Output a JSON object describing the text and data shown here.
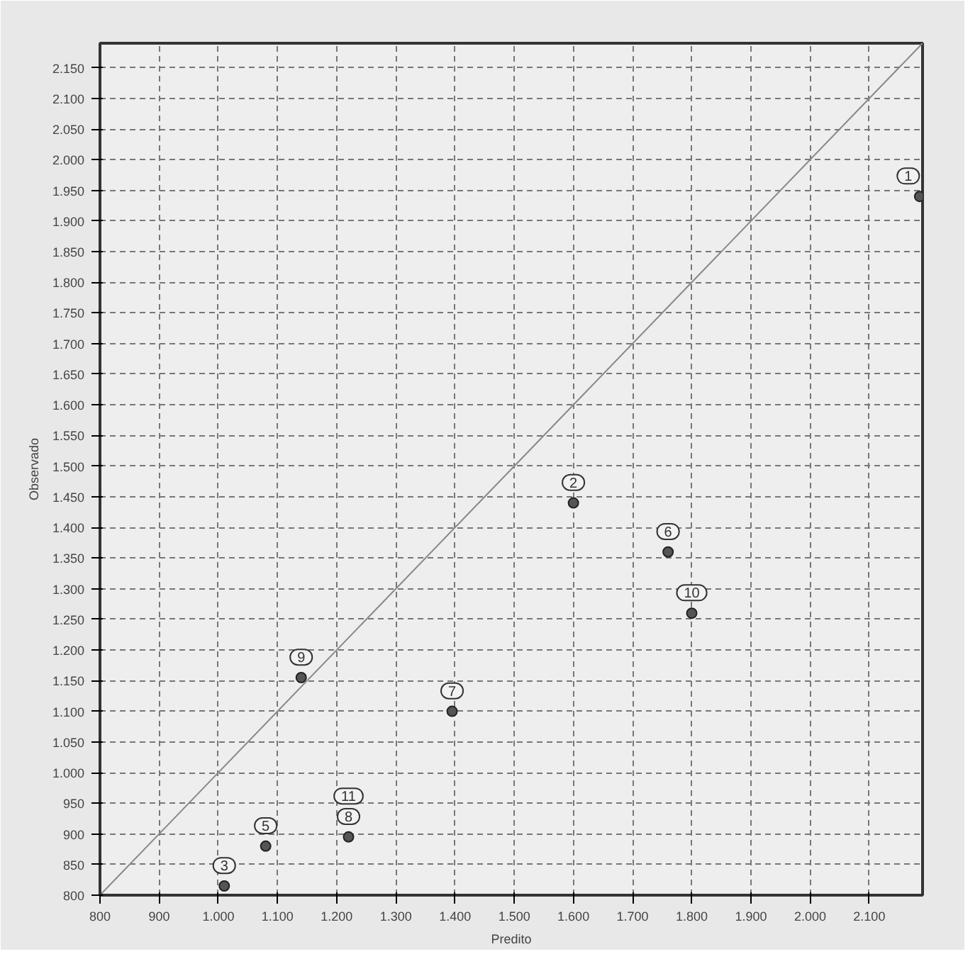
{
  "chart_data": {
    "type": "scatter",
    "xlabel": "Predito",
    "ylabel": "Observado",
    "xlim": [
      800,
      2190
    ],
    "ylim": [
      800,
      2190
    ],
    "xticks": [
      800,
      900,
      {
        "value": 1000,
        "label": "1.000"
      },
      {
        "value": 1100,
        "label": "1.100"
      },
      {
        "value": 1200,
        "label": "1.200"
      },
      {
        "value": 1300,
        "label": "1.300"
      },
      {
        "value": 1400,
        "label": "1.400"
      },
      {
        "value": 1500,
        "label": "1.500"
      },
      {
        "value": 1600,
        "label": "1.600"
      },
      {
        "value": 1700,
        "label": "1.700"
      },
      {
        "value": 1800,
        "label": "1.800"
      },
      {
        "value": 1900,
        "label": "1.900"
      },
      {
        "value": 2000,
        "label": "2.000"
      },
      {
        "value": 2100,
        "label": "2.100"
      }
    ],
    "yticks": [
      800,
      850,
      900,
      950,
      {
        "value": 1000,
        "label": "1.000"
      },
      {
        "value": 1050,
        "label": "1.050"
      },
      {
        "value": 1100,
        "label": "1.100"
      },
      {
        "value": 1150,
        "label": "1.150"
      },
      {
        "value": 1200,
        "label": "1.200"
      },
      {
        "value": 1250,
        "label": "1.250"
      },
      {
        "value": 1300,
        "label": "1.300"
      },
      {
        "value": 1350,
        "label": "1.350"
      },
      {
        "value": 1400,
        "label": "1.400"
      },
      {
        "value": 1450,
        "label": "1.450"
      },
      {
        "value": 1500,
        "label": "1.500"
      },
      {
        "value": 1550,
        "label": "1.550"
      },
      {
        "value": 1600,
        "label": "1.600"
      },
      {
        "value": 1650,
        "label": "1.650"
      },
      {
        "value": 1700,
        "label": "1.700"
      },
      {
        "value": 1750,
        "label": "1.750"
      },
      {
        "value": 1800,
        "label": "1.800"
      },
      {
        "value": 1850,
        "label": "1.850"
      },
      {
        "value": 1900,
        "label": "1.900"
      },
      {
        "value": 1950,
        "label": "1.950"
      },
      {
        "value": 2000,
        "label": "2.000"
      },
      {
        "value": 2050,
        "label": "2.050"
      },
      {
        "value": 2100,
        "label": "2.100"
      },
      {
        "value": 2150,
        "label": "2.150"
      }
    ],
    "grid": true,
    "annotations": [
      {
        "text": "1",
        "x": 2185,
        "y": 1940
      },
      {
        "text": "2",
        "x": 1600,
        "y": 1440
      },
      {
        "text": "3",
        "x": 1010,
        "y": 815
      },
      {
        "text": "5",
        "x": 1080,
        "y": 880
      },
      {
        "text": "6",
        "x": 1760,
        "y": 1360
      },
      {
        "text": "7",
        "x": 1395,
        "y": 1100
      },
      {
        "text": "8",
        "x": 1220,
        "y": 895
      },
      {
        "text": "9",
        "x": 1140,
        "y": 1155
      },
      {
        "text": "10",
        "x": 1800,
        "y": 1260
      },
      {
        "text": "11",
        "x": 1220,
        "y": 895
      }
    ],
    "series": [
      {
        "color": "#555555",
        "marker": "circle",
        "x": [
          2185,
          1600,
          1010,
          1080,
          1760,
          1395,
          1220,
          1140,
          1800
        ],
        "values": [
          1940,
          1440,
          815,
          880,
          1360,
          1100,
          895,
          1155,
          1260
        ]
      },
      {
        "type": "line",
        "color": "#888888",
        "line_style": "solid",
        "x": [
          800,
          2190
        ],
        "values": [
          800,
          2190
        ]
      }
    ]
  }
}
